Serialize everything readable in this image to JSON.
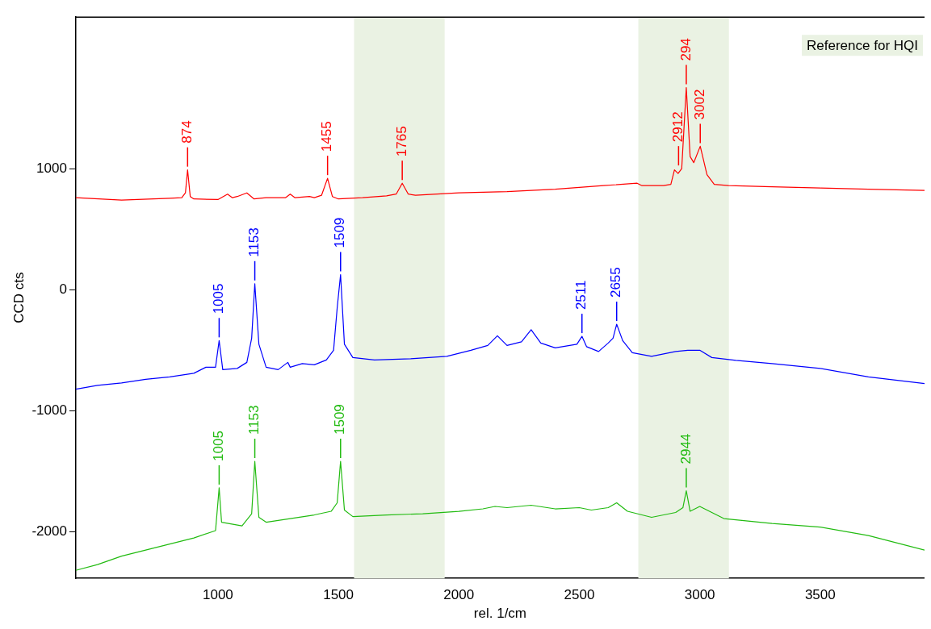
{
  "chart_data": {
    "type": "line",
    "xlabel": "rel. 1/cm",
    "ylabel": "CCD cts",
    "xlim": [
      410,
      3933
    ],
    "xticks": [
      1000,
      1500,
      2000,
      2500,
      3000,
      3500
    ],
    "ylim": [
      -2384,
      2252
    ],
    "yticks": [
      -2000,
      -1000,
      0,
      1000
    ],
    "grid": false,
    "legend": false,
    "marker": "none",
    "line_style": "solid",
    "bands": [
      {
        "axis": "x",
        "from": 1565,
        "to": 1941,
        "color": "#eaf2e3"
      },
      {
        "axis": "x",
        "from": 2745,
        "to": 3121,
        "color": "#eaf2e3"
      }
    ],
    "series": [
      {
        "color": "#ff0000",
        "x": [
          410,
          600,
          800,
          850,
          865,
          874,
          885,
          900,
          1000,
          1040,
          1060,
          1080,
          1120,
          1150,
          1200,
          1280,
          1300,
          1320,
          1380,
          1400,
          1430,
          1455,
          1475,
          1500,
          1600,
          1700,
          1740,
          1765,
          1790,
          1820,
          2000,
          2200,
          2400,
          2600,
          2740,
          2760,
          2850,
          2880,
          2895,
          2910,
          2925,
          2944,
          2960,
          2975,
          3002,
          3030,
          3060,
          3120,
          3300,
          3500,
          3700,
          3933
        ],
        "values": [
          760,
          740,
          755,
          760,
          800,
          990,
          770,
          750,
          745,
          790,
          760,
          770,
          800,
          750,
          760,
          760,
          790,
          760,
          770,
          760,
          780,
          920,
          770,
          750,
          760,
          775,
          790,
          880,
          790,
          780,
          800,
          810,
          830,
          860,
          880,
          860,
          860,
          870,
          990,
          960,
          1000,
          1670,
          1100,
          1050,
          1185,
          950,
          870,
          860,
          850,
          840,
          830,
          820
        ]
      },
      {
        "color": "#0000ff",
        "x": [
          410,
          500,
          600,
          700,
          800,
          900,
          950,
          990,
          1005,
          1020,
          1080,
          1120,
          1140,
          1153,
          1170,
          1200,
          1250,
          1290,
          1300,
          1350,
          1400,
          1450,
          1480,
          1495,
          1509,
          1525,
          1560,
          1650,
          1800,
          1950,
          2050,
          2120,
          2160,
          2200,
          2260,
          2300,
          2340,
          2400,
          2460,
          2490,
          2511,
          2530,
          2580,
          2620,
          2640,
          2655,
          2680,
          2720,
          2800,
          2900,
          2950,
          3000,
          3050,
          3150,
          3300,
          3500,
          3700,
          3933
        ],
        "values": [
          -821,
          -790,
          -770,
          -740,
          -720,
          -690,
          -640,
          -640,
          -420,
          -660,
          -650,
          -600,
          -400,
          50,
          -450,
          -640,
          -660,
          -600,
          -640,
          -610,
          -620,
          -580,
          -500,
          -150,
          125,
          -450,
          -560,
          -580,
          -570,
          -550,
          -500,
          -460,
          -380,
          -460,
          -430,
          -330,
          -440,
          -480,
          -460,
          -450,
          -385,
          -470,
          -510,
          -440,
          -400,
          -285,
          -420,
          -520,
          -550,
          -510,
          -500,
          -500,
          -560,
          -583,
          -610,
          -650,
          -720,
          -775
        ]
      },
      {
        "color": "#22bb11",
        "x": [
          410,
          500,
          600,
          700,
          800,
          900,
          990,
          1005,
          1015,
          1100,
          1140,
          1153,
          1170,
          1200,
          1300,
          1400,
          1470,
          1495,
          1509,
          1525,
          1560,
          1700,
          1850,
          2000,
          2100,
          2150,
          2200,
          2300,
          2400,
          2500,
          2550,
          2620,
          2655,
          2700,
          2800,
          2900,
          2930,
          2944,
          2960,
          3000,
          3050,
          3100,
          3200,
          3300,
          3500,
          3700,
          3933
        ],
        "values": [
          -2318,
          -2270,
          -2200,
          -2150,
          -2100,
          -2050,
          -1990,
          -1636,
          -1920,
          -1950,
          -1850,
          -1417,
          -1880,
          -1920,
          -1890,
          -1860,
          -1830,
          -1760,
          -1417,
          -1820,
          -1874,
          -1860,
          -1850,
          -1830,
          -1810,
          -1790,
          -1800,
          -1780,
          -1810,
          -1800,
          -1820,
          -1800,
          -1760,
          -1830,
          -1880,
          -1840,
          -1800,
          -1660,
          -1830,
          -1790,
          -1840,
          -1890,
          -1910,
          -1930,
          -1960,
          -2030,
          -2150
        ]
      }
    ],
    "annotations": [
      "Reference for HQI",
      {
        "text": "874",
        "x": 874,
        "y": 990
      },
      {
        "text": "1455",
        "x": 1455,
        "y": 920
      },
      {
        "text": "1765",
        "x": 1765,
        "y": 880
      },
      {
        "text": "2912",
        "x": 2912,
        "y": 1000
      },
      {
        "text": "294",
        "x": 2944,
        "y": 1670
      },
      {
        "text": "3002",
        "x": 3002,
        "y": 1185
      },
      {
        "text": "1005",
        "x": 1005,
        "y": -420
      },
      {
        "text": "1153",
        "x": 1153,
        "y": 50
      },
      {
        "text": "1509",
        "x": 1509,
        "y": 125
      },
      {
        "text": "2511",
        "x": 2511,
        "y": -385
      },
      {
        "text": "2655",
        "x": 2655,
        "y": -285
      },
      {
        "text": "1005",
        "x": 1005,
        "y": -1636
      },
      {
        "text": "1153",
        "x": 1153,
        "y": -1417
      },
      {
        "text": "1509",
        "x": 1509,
        "y": -1417
      },
      {
        "text": "2944",
        "x": 2944,
        "y": -1660
      }
    ]
  }
}
